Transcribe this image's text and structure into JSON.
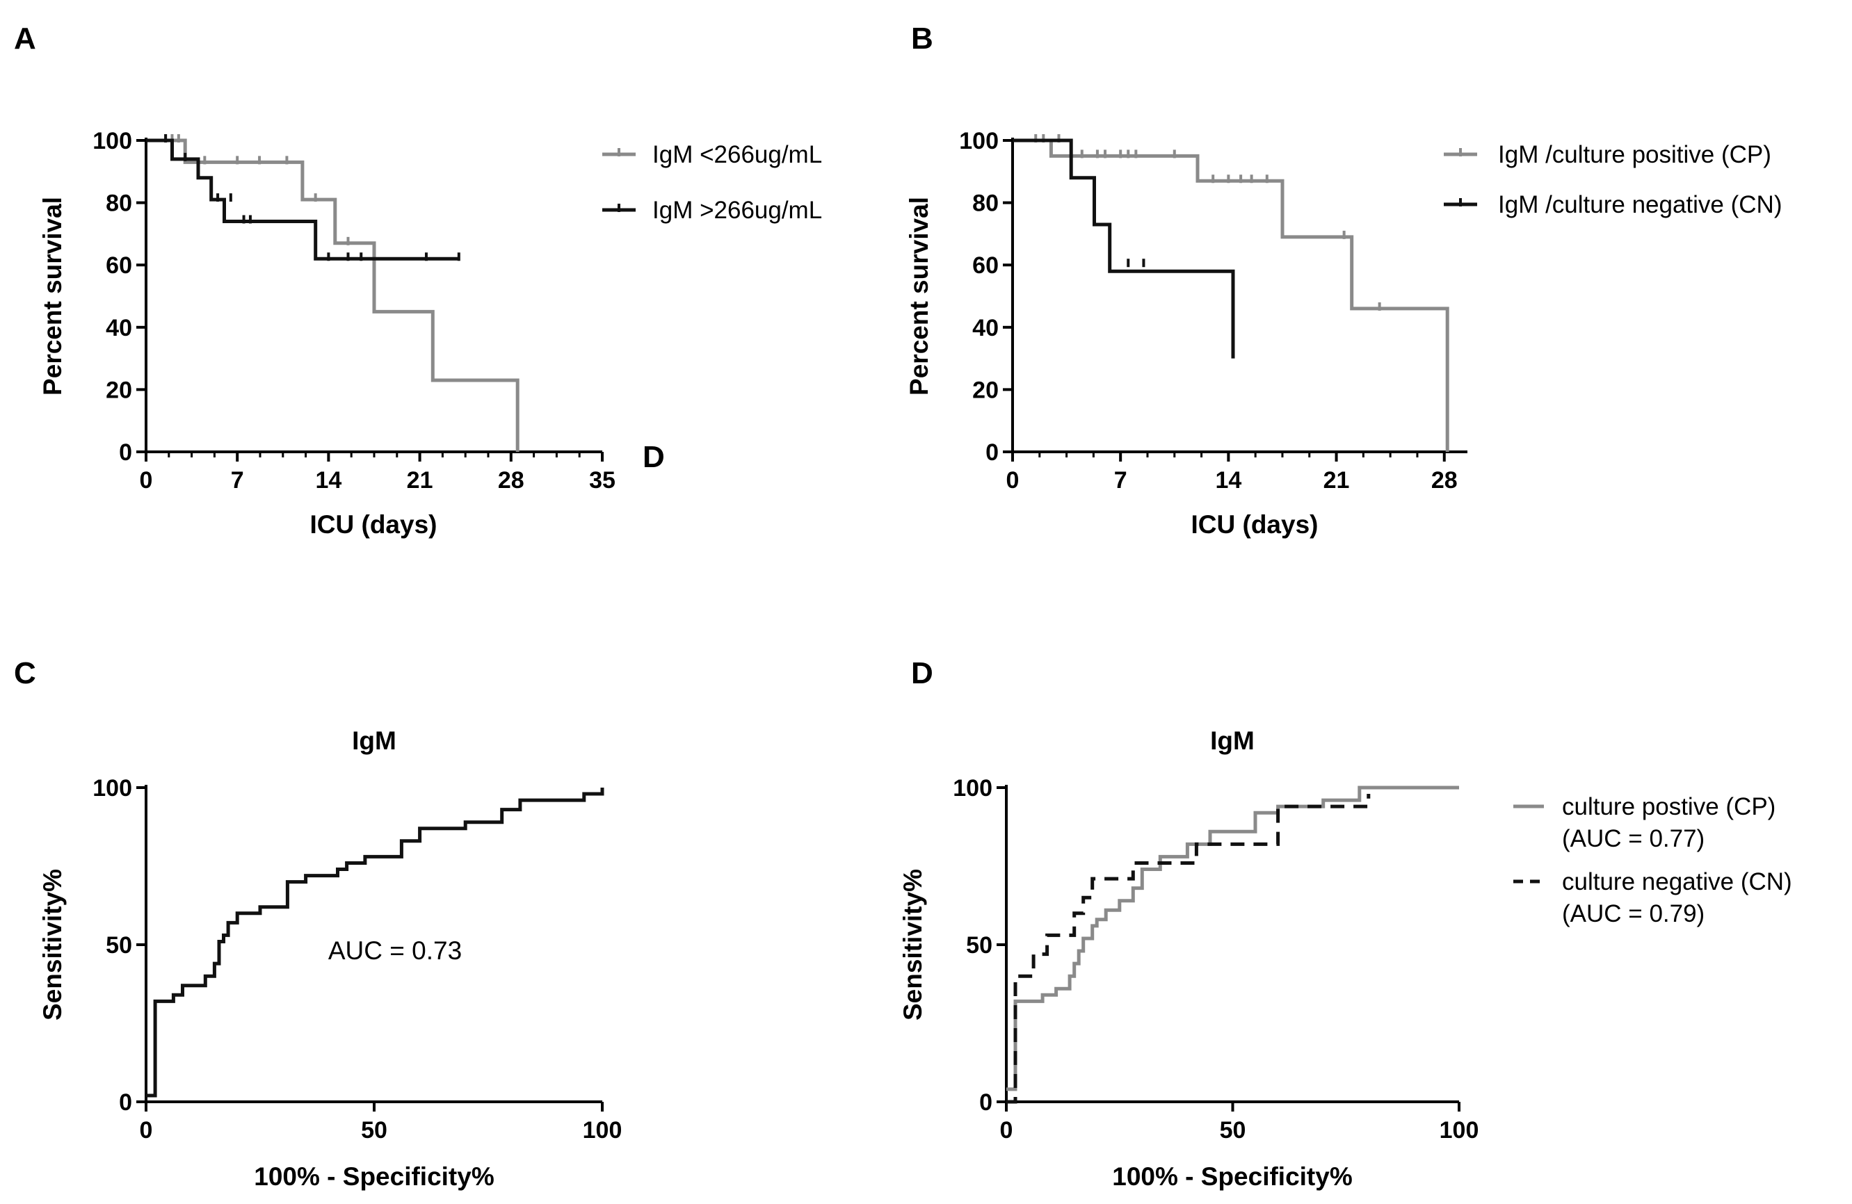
{
  "figure": {
    "colors": {
      "black": "#111111",
      "gray": "#8a8a8a"
    }
  },
  "chart_data": [
    {
      "id": "A",
      "panel_letter": "A",
      "type": "line",
      "subtype": "kaplan-meier step",
      "title": "",
      "xlabel": "ICU (days)",
      "ylabel": "Percent survival",
      "xlim": [
        0,
        35
      ],
      "ylim": [
        0,
        100
      ],
      "xticks": [
        0,
        7,
        14,
        21,
        28,
        35
      ],
      "yticks": [
        0,
        20,
        40,
        60,
        80,
        100
      ],
      "legend_position": "right",
      "series": [
        {
          "name": "IgM <266ug/mL",
          "color": "gray",
          "dash": false,
          "x": [
            0,
            3,
            3,
            12,
            12,
            14.5,
            14.5,
            17.5,
            17.5,
            22,
            22,
            28.5,
            28.5
          ],
          "y": [
            100,
            100,
            93,
            93,
            81,
            81,
            67,
            67,
            45,
            45,
            23,
            23,
            0
          ],
          "censor_x": [
            1.5,
            2,
            2.5,
            4.5,
            7,
            8.7,
            10.8,
            13,
            15.5
          ],
          "censor_y": [
            100,
            100,
            100,
            93,
            93,
            93,
            93,
            81,
            67
          ]
        },
        {
          "name": "IgM >266ug/mL",
          "color": "black",
          "dash": false,
          "x": [
            0,
            2,
            2,
            4,
            4,
            5,
            5,
            6,
            6,
            13,
            13,
            24
          ],
          "y": [
            100,
            100,
            94,
            94,
            88,
            88,
            81,
            81,
            74,
            74,
            62,
            62
          ],
          "censor_x": [
            1.5,
            3,
            5.5,
            6.5,
            7.5,
            8,
            14,
            15.5,
            16.5,
            21.5,
            24
          ],
          "censor_y": [
            100,
            94,
            81,
            81,
            74,
            74,
            62,
            62,
            62,
            62,
            62
          ]
        }
      ]
    },
    {
      "id": "B",
      "panel_letter": "B",
      "extra_letter": "D",
      "type": "line",
      "subtype": "kaplan-meier step",
      "title": "",
      "xlabel": "ICU (days)",
      "ylabel": "Percent survival",
      "xlim": [
        0,
        29.5
      ],
      "ylim": [
        0,
        100
      ],
      "xticks": [
        0,
        7,
        14,
        21,
        28
      ],
      "yticks": [
        0,
        20,
        40,
        60,
        80,
        100
      ],
      "legend_position": "right",
      "series": [
        {
          "name": "IgM /culture positive (CP)",
          "color": "gray",
          "dash": false,
          "x": [
            0,
            2.5,
            2.5,
            12,
            12,
            17.5,
            17.5,
            22,
            22,
            28.2,
            28.2
          ],
          "y": [
            100,
            100,
            95,
            95,
            87,
            87,
            69,
            69,
            46,
            46,
            0
          ],
          "censor_x": [
            1.5,
            2,
            3,
            4.5,
            5.5,
            6,
            7,
            7.5,
            8,
            10.5,
            13,
            14,
            14.8,
            15.5,
            16.5,
            21.5,
            23.8
          ],
          "censor_y": [
            100,
            100,
            100,
            95,
            95,
            95,
            95,
            95,
            95,
            95,
            87,
            87,
            87,
            87,
            87,
            69,
            46
          ]
        },
        {
          "name": "IgM /culture negative (CN)",
          "color": "black",
          "dash": false,
          "x": [
            0,
            3.8,
            3.8,
            5.3,
            5.3,
            6.3,
            6.3,
            14.3,
            14.3
          ],
          "y": [
            100,
            100,
            88,
            88,
            73,
            73,
            58,
            58,
            30
          ],
          "censor_x": [
            7.5,
            8.5
          ],
          "censor_y": [
            60,
            60
          ]
        }
      ]
    },
    {
      "id": "C",
      "panel_letter": "C",
      "type": "line",
      "subtype": "roc",
      "title": "IgM",
      "xlabel": "100% - Specificity%",
      "ylabel": "Sensitivity%",
      "xlim": [
        0,
        100
      ],
      "ylim": [
        0,
        100
      ],
      "xticks": [
        0,
        50,
        100
      ],
      "yticks": [
        0,
        50,
        100
      ],
      "annotation": "AUC = 0.73",
      "series": [
        {
          "name": "IgM",
          "color": "black",
          "dash": false,
          "x": [
            0,
            2,
            2,
            6,
            6,
            8,
            8,
            13,
            13,
            15,
            15,
            16,
            16,
            17,
            17,
            18,
            18,
            20,
            20,
            25,
            25,
            31,
            31,
            35,
            35,
            42,
            42,
            44,
            44,
            48,
            48,
            56,
            56,
            60,
            60,
            70,
            70,
            78,
            78,
            82,
            82,
            96,
            96,
            100,
            100
          ],
          "y": [
            2,
            2,
            32,
            32,
            34,
            34,
            37,
            37,
            40,
            40,
            44,
            44,
            51,
            51,
            53,
            53,
            57,
            57,
            60,
            60,
            62,
            62,
            70,
            70,
            72,
            72,
            74,
            74,
            76,
            76,
            78,
            78,
            83,
            83,
            87,
            87,
            89,
            89,
            93,
            93,
            96,
            96,
            98,
            98,
            100
          ]
        }
      ]
    },
    {
      "id": "D",
      "panel_letter": "D",
      "type": "line",
      "subtype": "roc",
      "title": "IgM",
      "xlabel": "100% - Specificity%",
      "ylabel": "Sensitivity%",
      "xlim": [
        0,
        100
      ],
      "ylim": [
        0,
        100
      ],
      "xticks": [
        0,
        50,
        100
      ],
      "yticks": [
        0,
        50,
        100
      ],
      "legend_position": "right",
      "series": [
        {
          "name": "culture postive (CP)",
          "legend_line2": "(AUC = 0.77)",
          "color": "gray",
          "dash": false,
          "x": [
            0,
            2,
            2,
            8,
            8,
            11,
            11,
            14,
            14,
            15,
            15,
            16,
            16,
            17,
            17,
            19,
            19,
            20,
            20,
            22,
            22,
            25,
            25,
            28,
            28,
            30,
            30,
            34,
            34,
            40,
            40,
            45,
            45,
            55,
            55,
            60,
            60,
            70,
            70,
            78,
            78,
            100
          ],
          "y": [
            4,
            4,
            32,
            32,
            34,
            34,
            36,
            36,
            40,
            40,
            44,
            44,
            48,
            48,
            52,
            52,
            56,
            56,
            58,
            58,
            61,
            61,
            64,
            64,
            68,
            68,
            74,
            74,
            78,
            78,
            82,
            82,
            86,
            86,
            92,
            92,
            94,
            94,
            96,
            96,
            100,
            100
          ]
        },
        {
          "name": "culture negative (CN)",
          "legend_line2": " (AUC = 0.79)",
          "color": "black",
          "dash": true,
          "x": [
            0,
            2,
            2,
            6,
            6,
            9,
            9,
            15,
            15,
            17,
            17,
            19,
            19,
            28,
            28,
            42,
            42,
            60,
            60,
            80,
            80
          ],
          "y": [
            0,
            0,
            40,
            40,
            47,
            47,
            53,
            53,
            60,
            60,
            65,
            65,
            71,
            71,
            76,
            76,
            82,
            82,
            94,
            94,
            98
          ]
        }
      ]
    }
  ]
}
